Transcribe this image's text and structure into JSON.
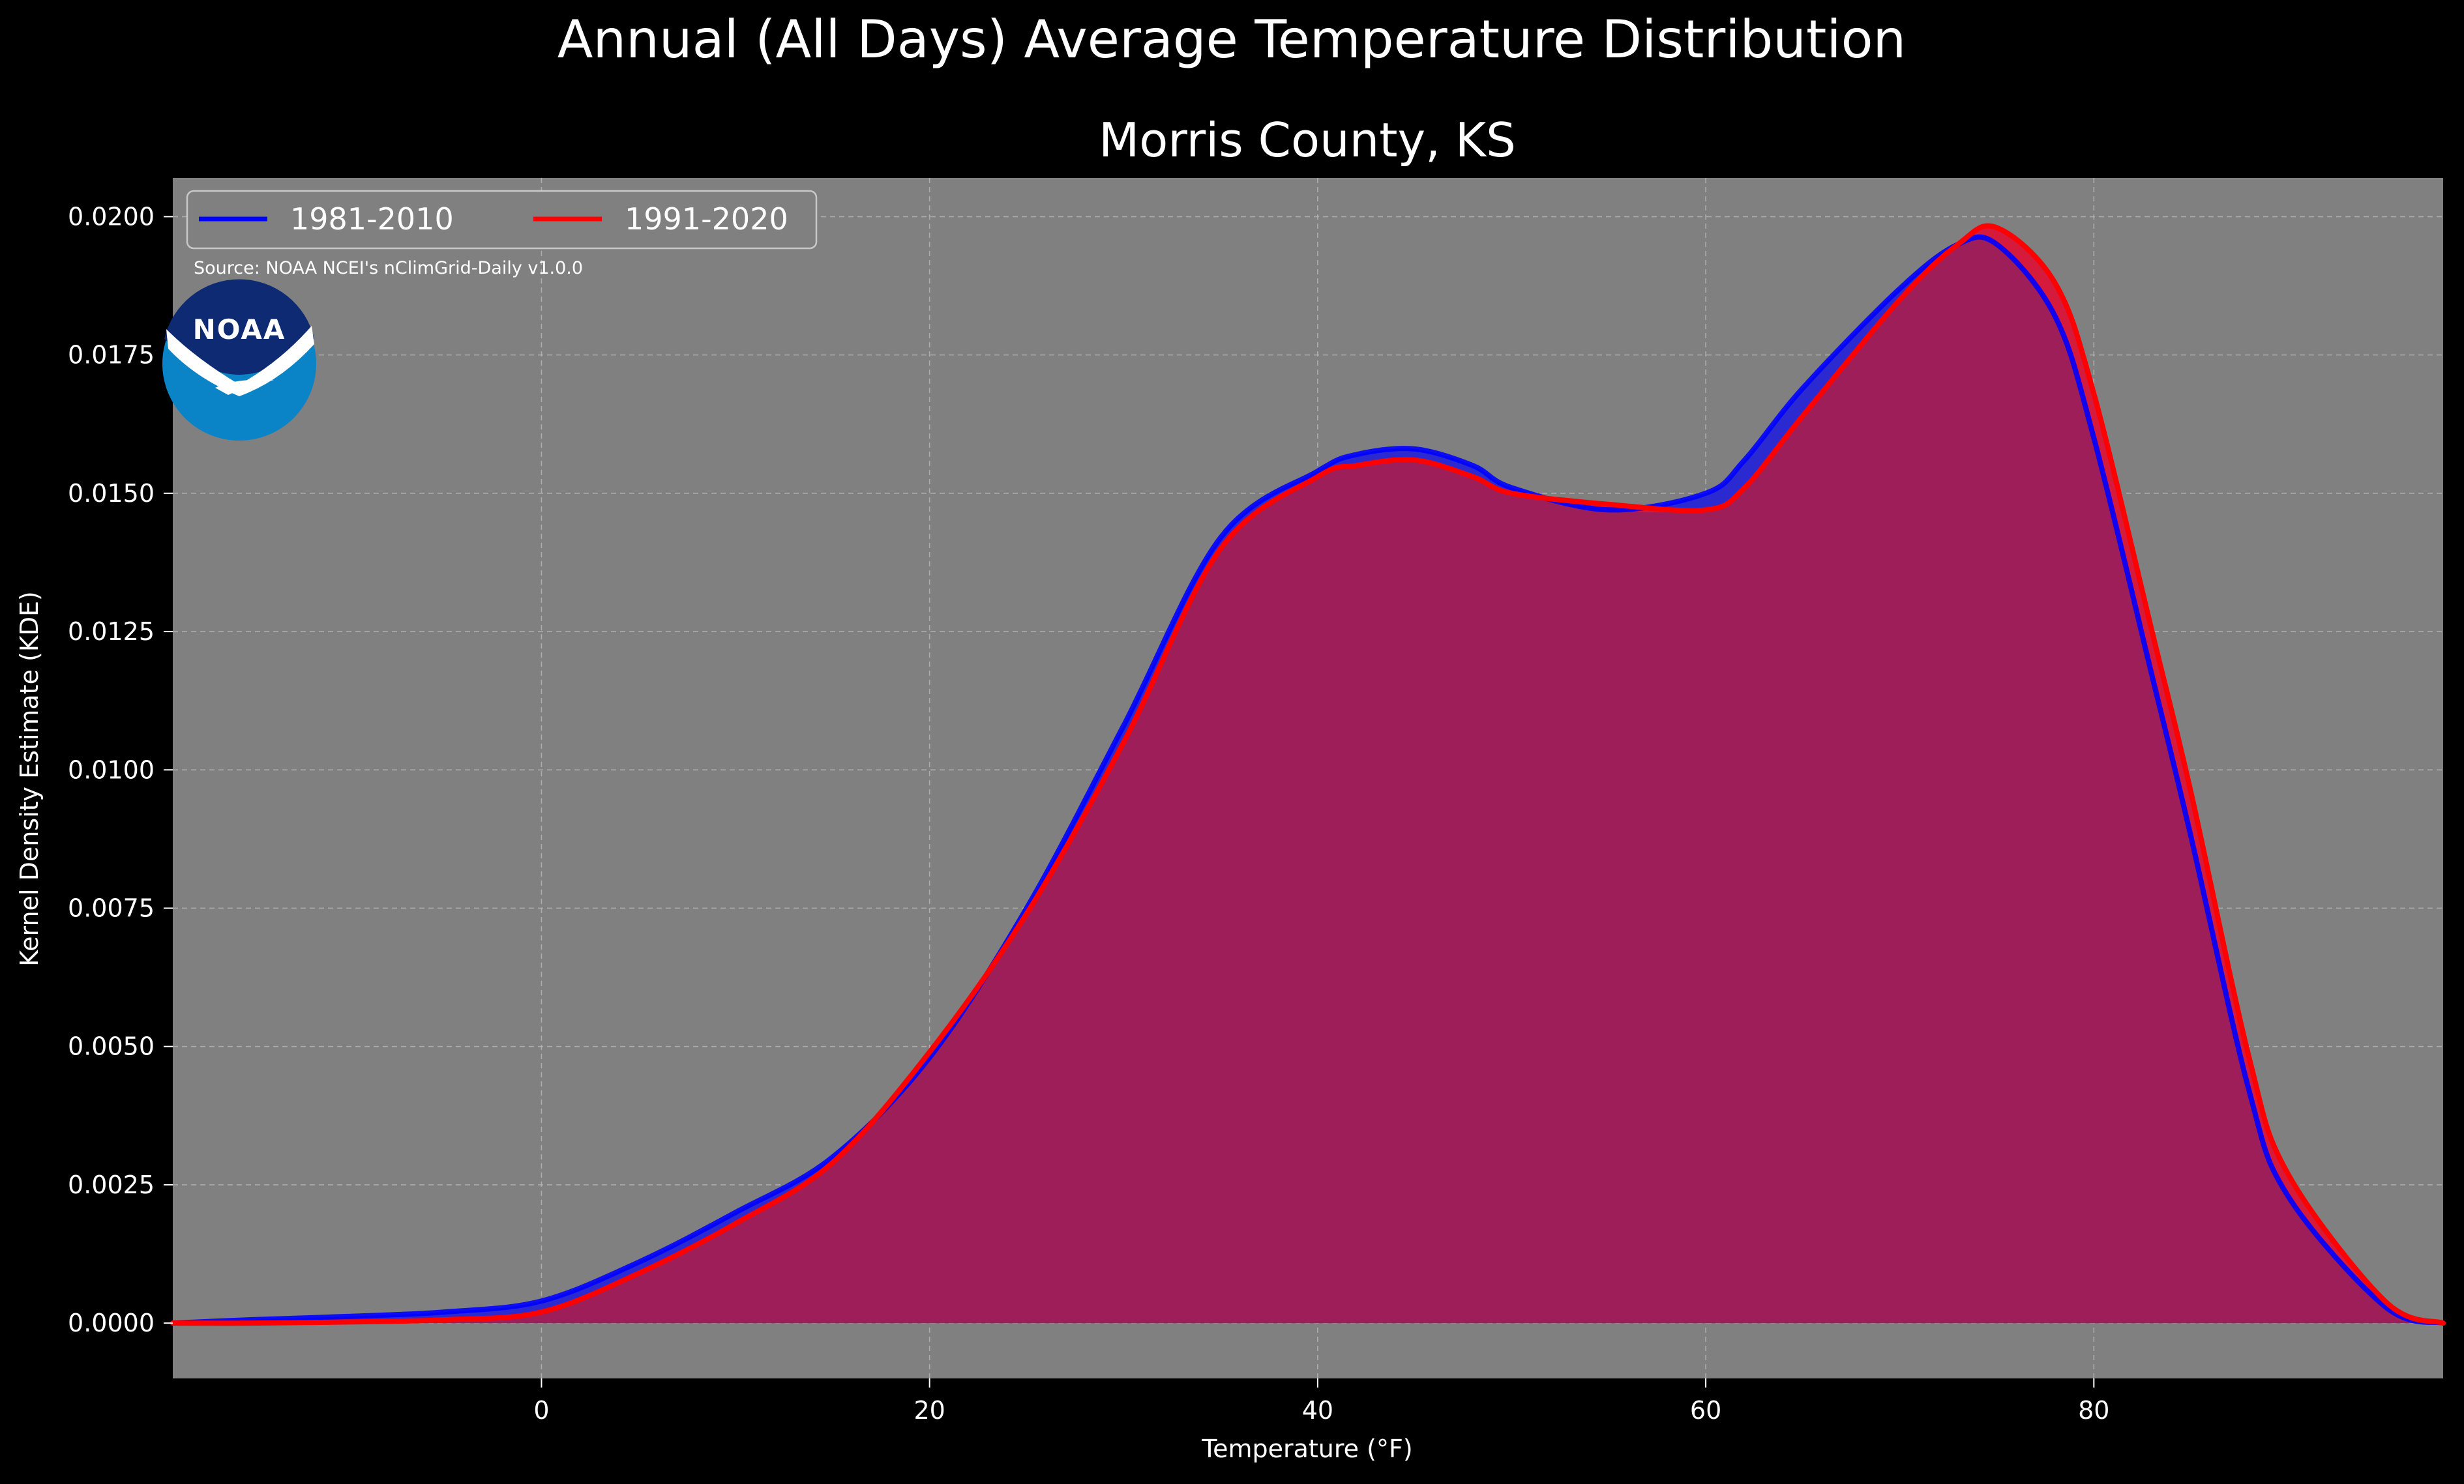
{
  "chart_data": {
    "type": "area",
    "title": "Annual (All Days) Average Temperature Distribution",
    "subtitle": "Morris County, KS",
    "xlabel": "Temperature (°F)",
    "ylabel": "Kernel Density Estimate (KDE)",
    "source": "Source: NOAA NCEI's nClimGrid-Daily v1.0.0",
    "logo_text": "NOAA",
    "xlim": [
      -19,
      98
    ],
    "ylim": [
      -0.001,
      0.0207
    ],
    "x_ticks": [
      0,
      20,
      40,
      60,
      80
    ],
    "x_tick_labels": [
      "0",
      "20",
      "40",
      "60",
      "80"
    ],
    "y_ticks": [
      0.0,
      0.0025,
      0.005,
      0.0075,
      0.01,
      0.0125,
      0.015,
      0.0175,
      0.02
    ],
    "y_tick_labels": [
      "0.0000",
      "0.0025",
      "0.0050",
      "0.0075",
      "0.0100",
      "0.0125",
      "0.0150",
      "0.0175",
      "0.0200"
    ],
    "grid": true,
    "legend_position": "top-left",
    "x": [
      -19,
      -15,
      -10,
      -5,
      0,
      5,
      10,
      15,
      20,
      25,
      30,
      35,
      40,
      42,
      45,
      48,
      50,
      55,
      60,
      62,
      65,
      70,
      73,
      75,
      78,
      80,
      83,
      85,
      88,
      90,
      95,
      98
    ],
    "series": [
      {
        "name": "1981-2010",
        "color": "#0000ff",
        "fill": "#2a2ad0",
        "values": [
          0.0,
          6e-05,
          0.00012,
          0.0002,
          0.0004,
          0.0011,
          0.002,
          0.003,
          0.0048,
          0.0075,
          0.0108,
          0.0142,
          0.0154,
          0.0157,
          0.0158,
          0.0155,
          0.0151,
          0.0147,
          0.015,
          0.0156,
          0.0169,
          0.0187,
          0.0195,
          0.0195,
          0.0182,
          0.016,
          0.0117,
          0.0088,
          0.0042,
          0.0023,
          0.0003,
          0.0
        ]
      },
      {
        "name": "1991-2020",
        "color": "#ff0000",
        "fill": "#d51a3c",
        "values": [
          0.0,
          0.0,
          2e-05,
          6e-05,
          0.0002,
          0.0009,
          0.0018,
          0.0029,
          0.0049,
          0.0074,
          0.0105,
          0.014,
          0.0153,
          0.0155,
          0.0156,
          0.0153,
          0.015,
          0.0148,
          0.0147,
          0.0151,
          0.0164,
          0.0185,
          0.0195,
          0.0198,
          0.0188,
          0.0168,
          0.0125,
          0.0096,
          0.0048,
          0.0027,
          0.0004,
          0.0
        ]
      }
    ]
  },
  "colors": {
    "background": "#000000",
    "plot_background": "#808080",
    "overlap_fill": "#9e1e5a",
    "grid": "#b8b8b8"
  }
}
